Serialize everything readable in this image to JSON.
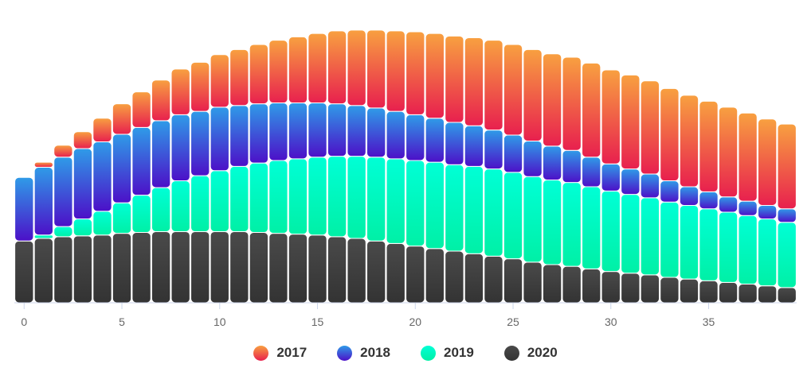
{
  "chart_data": {
    "type": "bar",
    "stacked": true,
    "x": [
      0,
      1,
      2,
      3,
      4,
      5,
      6,
      7,
      8,
      9,
      10,
      11,
      12,
      13,
      14,
      15,
      16,
      17,
      18,
      19,
      20,
      21,
      22,
      23,
      24,
      25,
      26,
      27,
      28,
      29,
      30,
      31,
      32,
      33,
      34,
      35,
      36,
      37,
      38,
      39
    ],
    "xticks": [
      0,
      5,
      10,
      15,
      20,
      25,
      30,
      35
    ],
    "xlim": [
      -0.5,
      39.5
    ],
    "ylim": [
      0,
      320
    ],
    "grid": false,
    "legend_position": "bottom-center",
    "series": [
      {
        "name": "2020",
        "color": "#3d3d3d",
        "gradient": [
          "#4a4a4a",
          "#333333"
        ],
        "values": [
          73,
          76,
          78,
          79,
          80,
          82,
          83,
          84,
          84,
          84,
          84,
          84,
          83,
          82,
          81,
          80,
          78,
          76,
          73,
          70,
          67,
          64,
          61,
          58,
          55,
          52,
          48,
          45,
          43,
          40,
          37,
          35,
          33,
          30,
          28,
          26,
          24,
          22,
          20,
          18
        ]
      },
      {
        "name": "2019",
        "color": "#00ffcc",
        "gradient": [
          "#00ffd6",
          "#00f0a6"
        ],
        "values": [
          0,
          4,
          12,
          20,
          28,
          36,
          44,
          52,
          60,
          66,
          72,
          77,
          82,
          86,
          89,
          92,
          95,
          97,
          99,
          100,
          101,
          102,
          102,
          103,
          103,
          102,
          101,
          100,
          99,
          97,
          95,
          93,
          91,
          89,
          87,
          85,
          83,
          81,
          79,
          77
        ]
      },
      {
        "name": "2018",
        "color": "#3060e8",
        "gradient": [
          "#2f9be8",
          "#4c10c8"
        ],
        "values": [
          75,
          80,
          82,
          83,
          82,
          81,
          80,
          79,
          78,
          76,
          75,
          72,
          70,
          68,
          66,
          64,
          62,
          60,
          58,
          56,
          54,
          52,
          50,
          48,
          46,
          44,
          42,
          40,
          38,
          35,
          32,
          30,
          28,
          25,
          22,
          20,
          18,
          17,
          16,
          16
        ]
      },
      {
        "name": "2017",
        "color": "#f05050",
        "gradient": [
          "#f8a040",
          "#e8204e"
        ],
        "values": [
          0,
          6,
          14,
          20,
          28,
          36,
          42,
          48,
          54,
          58,
          62,
          66,
          70,
          74,
          78,
          82,
          86,
          89,
          92,
          95,
          98,
          100,
          102,
          104,
          106,
          107,
          108,
          109,
          110,
          111,
          111,
          111,
          110,
          109,
          108,
          107,
          106,
          104,
          102,
          100
        ]
      }
    ]
  }
}
